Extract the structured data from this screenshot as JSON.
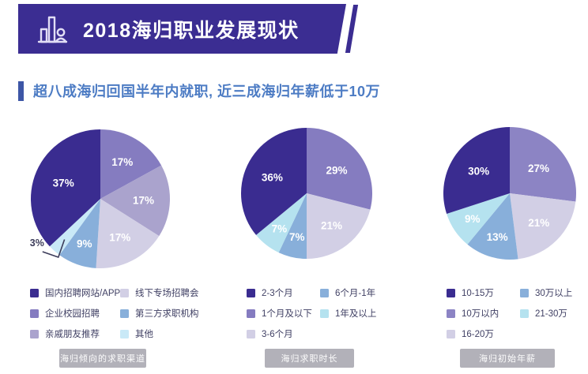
{
  "header": {
    "title": "2018海归职业发展现状",
    "banner_color": "#3b2d92"
  },
  "subtitle": {
    "text": "超八成海归回国半年内就职, 近三成海归年薪低于10万",
    "accent_color": "#3d56a6",
    "text_color": "#4d7cc4"
  },
  "chart_data": [
    {
      "type": "pie",
      "caption": "海归倾向的求职渠道",
      "unit": "%",
      "slices": [
        {
          "label": "企业校园招聘",
          "value": 17,
          "color": "#857cc0"
        },
        {
          "label": "亲戚朋友推荐",
          "value": 17,
          "color": "#aaa3cd"
        },
        {
          "label": "线下专场招聘会",
          "value": 17,
          "color": "#d2cfe5"
        },
        {
          "label": "第三方求职机构",
          "value": 9,
          "color": "#88afda"
        },
        {
          "label": "其他",
          "value": 3,
          "color": "#c9e9f7",
          "callout": true
        },
        {
          "label": "国内招聘网站/APP",
          "value": 37,
          "color": "#3a2c90"
        }
      ],
      "legend": [
        "国内招聘网站/APP",
        "线下专场招聘会",
        "企业校园招聘",
        "第三方求职机构",
        "亲戚朋友推荐",
        "其他"
      ]
    },
    {
      "type": "pie",
      "caption": "海归求职时长",
      "unit": "%",
      "slices": [
        {
          "label": "1个月及以下",
          "value": 29,
          "color": "#857cc0"
        },
        {
          "label": "3-6个月",
          "value": 21,
          "color": "#d2cfe5"
        },
        {
          "label": "6个月-1年",
          "value": 7,
          "color": "#88afda"
        },
        {
          "label": "1年及以上",
          "value": 7,
          "color": "#b5e2ef"
        },
        {
          "label": "2-3个月",
          "value": 36,
          "color": "#3a2c90"
        }
      ],
      "legend": [
        "2-3个月",
        "6个月-1年",
        "1个月及以下",
        "1年及以上",
        "3-6个月"
      ]
    },
    {
      "type": "pie",
      "caption": "海归初始年薪",
      "unit": "%",
      "slices": [
        {
          "label": "10万以内",
          "value": 27,
          "color": "#8c84c4"
        },
        {
          "label": "16-20万",
          "value": 21,
          "color": "#d2cfe5"
        },
        {
          "label": "30万以上",
          "value": 13,
          "color": "#88afda"
        },
        {
          "label": "21-30万",
          "value": 9,
          "color": "#b5e2ef"
        },
        {
          "label": "10-15万",
          "value": 30,
          "color": "#3a2c90"
        }
      ],
      "legend": [
        "10-15万",
        "30万以上",
        "10万以内",
        "21-30万",
        "16-20万"
      ]
    }
  ]
}
